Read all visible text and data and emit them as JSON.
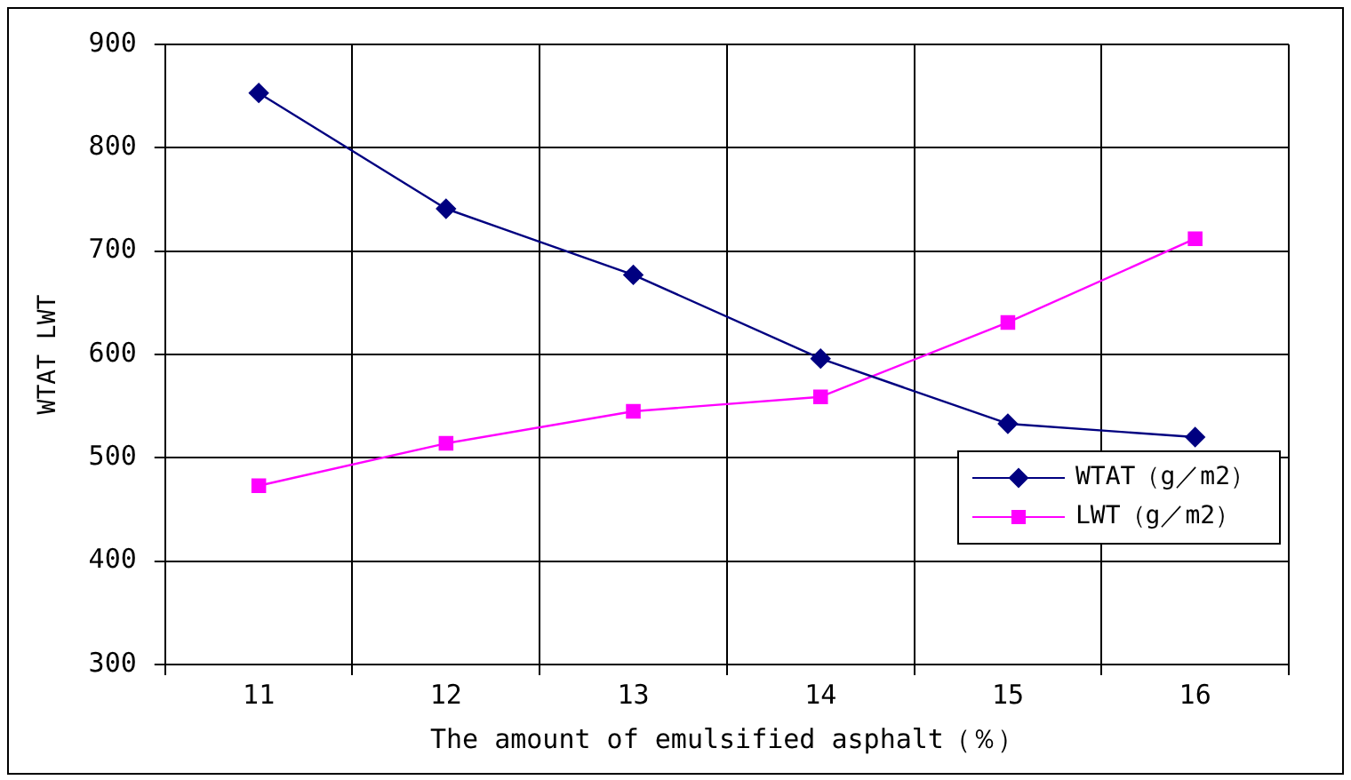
{
  "chart_data": {
    "type": "line",
    "xlabel": "The amount of emulsified asphalt（％）",
    "ylabel": "WTAT LWT",
    "categories": [
      "11",
      "12",
      "13",
      "14",
      "15",
      "16"
    ],
    "series": [
      {
        "name": "WTAT（g／m2）",
        "color": "#000080",
        "marker": "diamond",
        "values": [
          853,
          741,
          677,
          596,
          533,
          520
        ]
      },
      {
        "name": "LWT（g／m2）",
        "color": "#ff00ff",
        "marker": "square",
        "values": [
          473,
          514,
          545,
          559,
          631,
          712
        ]
      }
    ],
    "ylim": [
      300,
      900
    ],
    "yticks": [
      300,
      400,
      500,
      600,
      700,
      800,
      900
    ],
    "grid": true,
    "legend": "bottom right",
    "line_style": "solid"
  }
}
